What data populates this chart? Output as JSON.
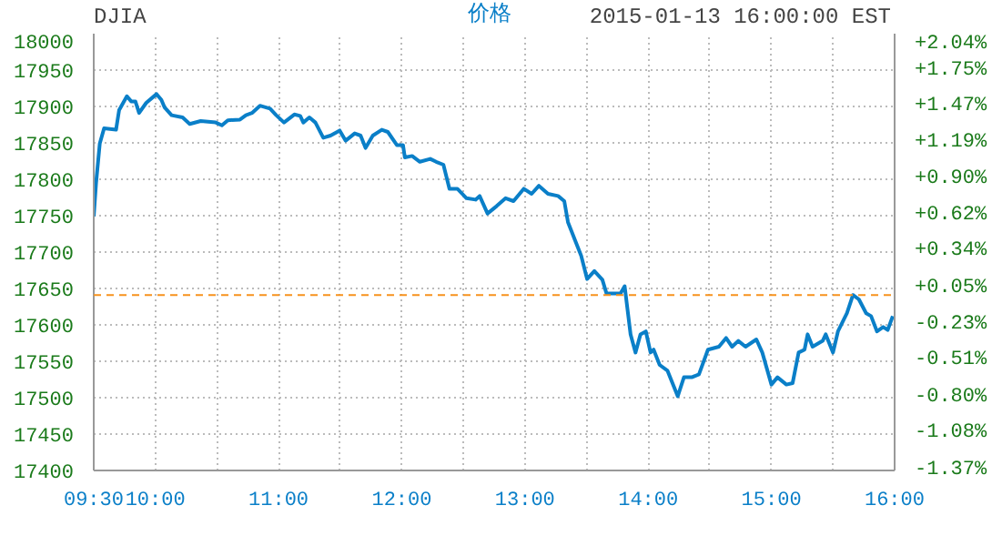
{
  "chart_data": {
    "type": "line",
    "title": "DJIA",
    "annotations": [
      "2015-01-13 16:00:00 EST"
    ],
    "series": [
      {
        "name": "价格",
        "color": "#0a7fc8",
        "x": [
          9.5,
          9.519,
          9.549,
          9.584,
          9.681,
          9.706,
          9.769,
          9.804,
          9.838,
          9.868,
          9.926,
          9.975,
          10.01,
          10.049,
          10.074,
          10.132,
          10.221,
          10.279,
          10.368,
          10.49,
          10.54,
          10.588,
          10.687,
          10.735,
          10.784,
          10.849,
          10.931,
          10.981,
          11.044,
          11.128,
          11.176,
          11.201,
          11.25,
          11.299,
          11.363,
          11.422,
          11.496,
          11.544,
          11.618,
          11.666,
          11.706,
          11.765,
          11.838,
          11.887,
          11.96,
          12.01,
          12.025,
          12.084,
          12.147,
          12.231,
          12.279,
          12.338,
          12.387,
          12.451,
          12.525,
          12.599,
          12.632,
          12.696,
          12.769,
          12.843,
          12.907,
          12.99,
          13.054,
          13.113,
          13.187,
          13.269,
          13.319,
          13.349,
          13.407,
          13.456,
          13.504,
          13.563,
          13.628,
          13.662,
          13.775,
          13.809,
          13.857,
          13.897,
          13.937,
          13.981,
          14.019,
          14.044,
          14.093,
          14.157,
          14.24,
          14.29,
          14.353,
          14.412,
          14.485,
          14.574,
          14.632,
          14.681,
          14.731,
          14.79,
          14.878,
          14.926,
          15.0,
          15.049,
          15.122,
          15.172,
          15.221,
          15.269,
          15.294,
          15.334,
          15.416,
          15.441,
          15.5,
          15.54,
          15.613,
          15.662,
          15.71,
          15.769,
          15.809,
          15.857,
          15.907,
          15.944,
          15.985
        ],
        "values": [
          17749,
          17795,
          17849,
          17870,
          17868,
          17895,
          17914,
          17907,
          17907,
          17891,
          17905,
          17912,
          17917,
          17909,
          17899,
          17888,
          17885,
          17876,
          17880,
          17878,
          17874,
          17881,
          17882,
          17888,
          17891,
          17901,
          17897,
          17888,
          17878,
          17889,
          17887,
          17878,
          17885,
          17878,
          17857,
          17860,
          17867,
          17853,
          17863,
          17860,
          17843,
          17860,
          17868,
          17865,
          17847,
          17847,
          17830,
          17832,
          17824,
          17828,
          17824,
          17820,
          17787,
          17787,
          17774,
          17772,
          17777,
          17753,
          17763,
          17774,
          17770,
          17787,
          17780,
          17791,
          17780,
          17777,
          17770,
          17741,
          17716,
          17695,
          17663,
          17674,
          17662,
          17643,
          17643,
          17653,
          17587,
          17562,
          17587,
          17591,
          17562,
          17566,
          17545,
          17537,
          17502,
          17528,
          17528,
          17532,
          17566,
          17570,
          17582,
          17570,
          17578,
          17570,
          17580,
          17562,
          17518,
          17528,
          17518,
          17520,
          17562,
          17566,
          17587,
          17570,
          17578,
          17587,
          17562,
          17591,
          17616,
          17641,
          17635,
          17616,
          17612,
          17591,
          17597,
          17593,
          17612
        ]
      }
    ],
    "xlim": [
      9.5,
      16
    ],
    "xticks": [
      {
        "value": 9.5,
        "label": "09:30"
      },
      {
        "value": 10,
        "label": "10:00"
      },
      {
        "value": 10.5,
        "label": null
      },
      {
        "value": 11,
        "label": "11:00"
      },
      {
        "value": 11.5,
        "label": null
      },
      {
        "value": 12,
        "label": "12:00"
      },
      {
        "value": 12.5,
        "label": null
      },
      {
        "value": 13,
        "label": "13:00"
      },
      {
        "value": 13.5,
        "label": null
      },
      {
        "value": 14,
        "label": "14:00"
      },
      {
        "value": 14.5,
        "label": null
      },
      {
        "value": 15,
        "label": "15:00"
      },
      {
        "value": 15.5,
        "label": null
      },
      {
        "value": 16,
        "label": "16:00"
      }
    ],
    "ylim": [
      17400,
      18000
    ],
    "yticks": [
      17400,
      17450,
      17500,
      17550,
      17600,
      17650,
      17700,
      17750,
      17800,
      17850,
      17900,
      17950,
      18000
    ],
    "y2lim": [
      -1.37,
      2.04
    ],
    "y2ticks": [
      {
        "value": -1.37,
        "label": "-1.37%"
      },
      {
        "value": -1.08,
        "label": "-1.08%"
      },
      {
        "value": -0.8,
        "label": "-0.80%"
      },
      {
        "value": -0.51,
        "label": "-0.51%"
      },
      {
        "value": -0.23,
        "label": "-0.23%"
      },
      {
        "value": 0.05,
        "label": "+0.05%"
      },
      {
        "value": 0.34,
        "label": "+0.34%"
      },
      {
        "value": 0.62,
        "label": "+0.62%"
      },
      {
        "value": 0.9,
        "label": "+0.90%"
      },
      {
        "value": 1.19,
        "label": "+1.19%"
      },
      {
        "value": 1.47,
        "label": "+1.47%"
      },
      {
        "value": 1.75,
        "label": "+1.75%"
      },
      {
        "value": 2.04,
        "label": "+2.04%"
      }
    ],
    "ref_lines": [
      {
        "axis": "y",
        "value": 17641,
        "color": "#f7931e",
        "line_style": "dashed"
      }
    ],
    "grid": true,
    "legend": "top",
    "marker": "none",
    "line_style": "solid"
  }
}
